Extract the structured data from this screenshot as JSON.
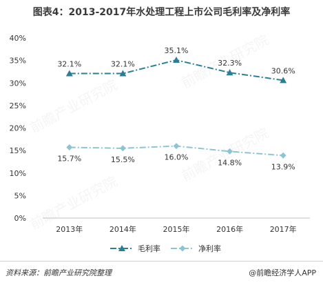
{
  "title": "图表4：2013-2017年水处理工程上市公司毛利率及净利率",
  "chart_data": {
    "type": "line",
    "categories": [
      "2013年",
      "2014年",
      "2015年",
      "2016年",
      "2017年"
    ],
    "series": [
      {
        "name": "毛利率",
        "values": [
          32.1,
          32.1,
          35.1,
          32.3,
          30.6
        ],
        "labels": [
          "32.1%",
          "32.1%",
          "35.1%",
          "32.3%",
          "30.6%"
        ],
        "color": "#2a7f96",
        "marker": "triangle"
      },
      {
        "name": "净利率",
        "values": [
          15.7,
          15.5,
          16.0,
          14.8,
          13.9
        ],
        "labels": [
          "15.7%",
          "15.5%",
          "16.0%",
          "14.8%",
          "13.9%"
        ],
        "color": "#8ec4d2",
        "marker": "diamond"
      }
    ],
    "yticks": [
      "0%",
      "5%",
      "10%",
      "15%",
      "20%",
      "25%",
      "30%",
      "35%",
      "40%"
    ],
    "ylim": [
      0,
      40
    ],
    "legend_position": "bottom",
    "grid": false
  },
  "footer": {
    "source": "资料来源：前瞻产业研究院整理",
    "brand": "@前瞻经济学人APP"
  },
  "watermark": "前瞻产业研究院"
}
